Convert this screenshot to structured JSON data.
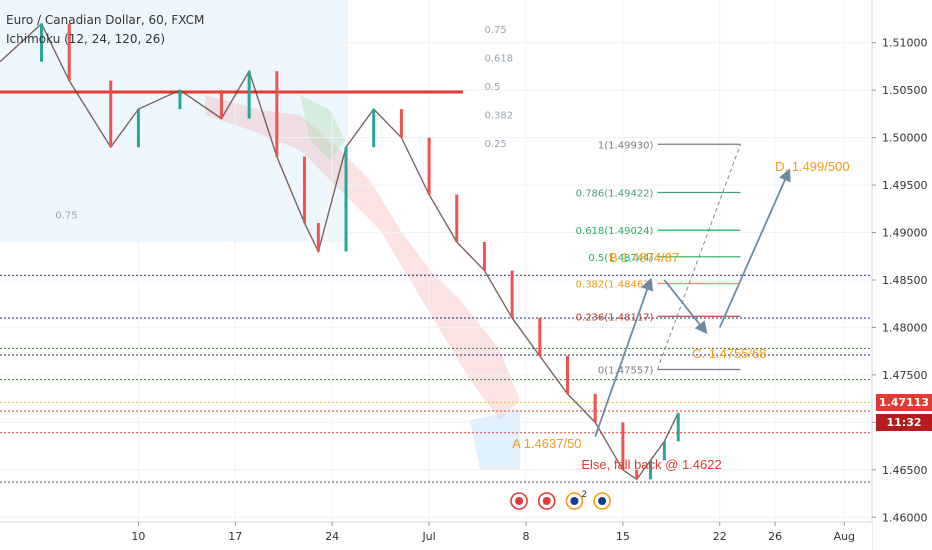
{
  "header": {
    "symbol_title": "Euro / Canadian Dollar, 60, FXCM",
    "indicator": "Ichimoku (12, 24, 120, 26)"
  },
  "price_tags": {
    "last_price": "1.47113",
    "countdown": "11:32"
  },
  "colors": {
    "bull_candle": "#26a69a",
    "bear_candle": "#ef5350",
    "resistance_red": "#e53935",
    "annotation_orange": "#f39c12",
    "annotation_red": "#e53935",
    "arrow_blue": "#6b8ba4",
    "price_tag_red": "#e53935",
    "countdown_bg": "#c62828"
  },
  "chart_data": {
    "type": "line",
    "title": "Euro / Canadian Dollar, 60, FXCM",
    "xlabel": "",
    "ylabel": "",
    "ylim": [
      1.4595,
      1.5145
    ],
    "x_ticks": [
      "10",
      "17",
      "24",
      "Jul",
      "8",
      "15",
      "22",
      "26",
      "Aug"
    ],
    "y_ticks": [
      "1.51000",
      "1.50500",
      "1.50000",
      "1.49500",
      "1.49000",
      "1.48500",
      "1.48000",
      "1.47500",
      "1.47000",
      "1.46500",
      "1.46000"
    ],
    "grid": true,
    "price_path": [
      {
        "x": 0,
        "y": 1.508
      },
      {
        "x": 3,
        "y": 1.512
      },
      {
        "x": 5,
        "y": 1.506
      },
      {
        "x": 8,
        "y": 1.499
      },
      {
        "x": 10,
        "y": 1.503
      },
      {
        "x": 13,
        "y": 1.505
      },
      {
        "x": 16,
        "y": 1.502
      },
      {
        "x": 18,
        "y": 1.507
      },
      {
        "x": 20,
        "y": 1.498
      },
      {
        "x": 22,
        "y": 1.491
      },
      {
        "x": 23,
        "y": 1.488
      },
      {
        "x": 25,
        "y": 1.499
      },
      {
        "x": 27,
        "y": 1.503
      },
      {
        "x": 29,
        "y": 1.5
      },
      {
        "x": 31,
        "y": 1.494
      },
      {
        "x": 33,
        "y": 1.489
      },
      {
        "x": 35,
        "y": 1.486
      },
      {
        "x": 37,
        "y": 1.481
      },
      {
        "x": 39,
        "y": 1.477
      },
      {
        "x": 41,
        "y": 1.473
      },
      {
        "x": 43,
        "y": 1.47
      },
      {
        "x": 45,
        "y": 1.465
      },
      {
        "x": 46,
        "y": 1.464
      },
      {
        "x": 47,
        "y": 1.466
      },
      {
        "x": 48,
        "y": 1.468
      },
      {
        "x": 49,
        "y": 1.471
      }
    ],
    "x_tick_positions": [
      10,
      17,
      24,
      31,
      38,
      45,
      52,
      56,
      61
    ],
    "fibonacci": {
      "levels": [
        {
          "label": "1(1.49930)",
          "value": 1.4993,
          "color": "#787b86"
        },
        {
          "label": "0.786(1.49422)",
          "value": 1.49422,
          "color": "#4a9a8a"
        },
        {
          "label": "0.618(1.49024)",
          "value": 1.49024,
          "color": "#27ae60"
        },
        {
          "label": "0.5(1.48744)",
          "value": 1.48744,
          "color": "#27ae60"
        },
        {
          "label": "0.382(1.48463)",
          "value": 1.48463,
          "color": "#f39c12"
        },
        {
          "label": "0.236(1.48117)",
          "value": 1.48117,
          "color": "#c0392b"
        },
        {
          "label": "0(1.47557)",
          "value": 1.47557,
          "color": "#787b86"
        }
      ]
    },
    "old_fib_labels": [
      "0.75",
      "0.618",
      "0.5",
      "0.382",
      "0.25",
      "0.75"
    ],
    "horizontal_lines": [
      {
        "value": 1.4855,
        "color": "#1a237e",
        "style": "dotted"
      },
      {
        "value": 1.481,
        "color": "#1a237e",
        "style": "dotted"
      },
      {
        "value": 1.4778,
        "color": "#2e7d32",
        "style": "dotted"
      },
      {
        "value": 1.4771,
        "color": "#1a237e",
        "style": "dotted"
      },
      {
        "value": 1.4745,
        "color": "#2e7d32",
        "style": "dotted"
      },
      {
        "value": 1.4721,
        "color": "#f1c40f",
        "style": "dotted"
      },
      {
        "value": 1.4712,
        "color": "#e53935",
        "style": "dotted"
      },
      {
        "value": 1.4689,
        "color": "#e53935",
        "style": "dotted"
      },
      {
        "value": 1.4637,
        "color": "#555555",
        "style": "dotted"
      }
    ],
    "resistance_line": {
      "value": 1.5048,
      "x_start": 0,
      "x_end": 32
    },
    "annotations": [
      {
        "text": "D. 1.499/500",
        "x": 56,
        "y": 1.4965,
        "color": "#f39c12"
      },
      {
        "text": "B 1.4874/87",
        "x": 44,
        "y": 1.4869,
        "color": "#f39c12"
      },
      {
        "text": "C. 1.4755/68",
        "x": 50,
        "y": 1.4768,
        "color": "#f39c12"
      },
      {
        "text": "A 1.4637/50",
        "x": 37,
        "y": 1.4673,
        "color": "#f39c12"
      },
      {
        "text": "Else, fall back @ 1.4622",
        "x": 42,
        "y": 1.4651,
        "color": "#e53935"
      }
    ],
    "arrows": [
      {
        "from": {
          "x": 43,
          "y": 1.4685
        },
        "to": {
          "x": 47,
          "y": 1.485
        }
      },
      {
        "from": {
          "x": 48,
          "y": 1.485
        },
        "to": {
          "x": 51,
          "y": 1.4795
        }
      },
      {
        "from": {
          "x": 52,
          "y": 1.48
        },
        "to": {
          "x": 57,
          "y": 1.4965
        }
      }
    ],
    "event_icons": [
      "ca-flag",
      "ca-flag",
      "eu-flag",
      "eu-flag"
    ],
    "event_count": "2"
  }
}
